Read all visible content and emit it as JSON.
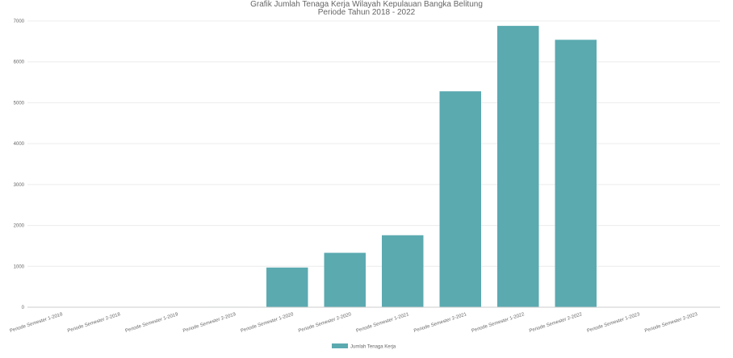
{
  "chart_data": {
    "type": "bar",
    "title": "Grafik Jumlah Tenaga Kerja Wilayah Kepulauan Bangka Belitung",
    "subtitle": "Periode Tahun 2018 - 2022",
    "xlabel": "",
    "ylabel": "",
    "ylim": [
      0,
      7000
    ],
    "yticks": [
      0,
      1000,
      2000,
      3000,
      4000,
      5000,
      6000,
      7000
    ],
    "grid": true,
    "legend_position": "bottom",
    "categories": [
      "Periode Semester 1-2018",
      "Periode Semester 2-2018",
      "Periode Semester 1-2019",
      "Periode Semester 2-2019",
      "Periode Semester 1-2020",
      "Periode Semester 2-2020",
      "Periode Semester 1-2021",
      "Periode Semester 2-2021",
      "Periode Semester 1-2022",
      "Periode Semester 2-2022",
      "Periode Semester 1-2023",
      "Periode Semester 2-2023"
    ],
    "series": [
      {
        "name": "Jumlah Tenaga Kerja",
        "color": "#5aaab0",
        "values": [
          0,
          0,
          0,
          10,
          970,
          1330,
          1760,
          5280,
          6880,
          6540,
          0,
          0
        ]
      }
    ]
  }
}
